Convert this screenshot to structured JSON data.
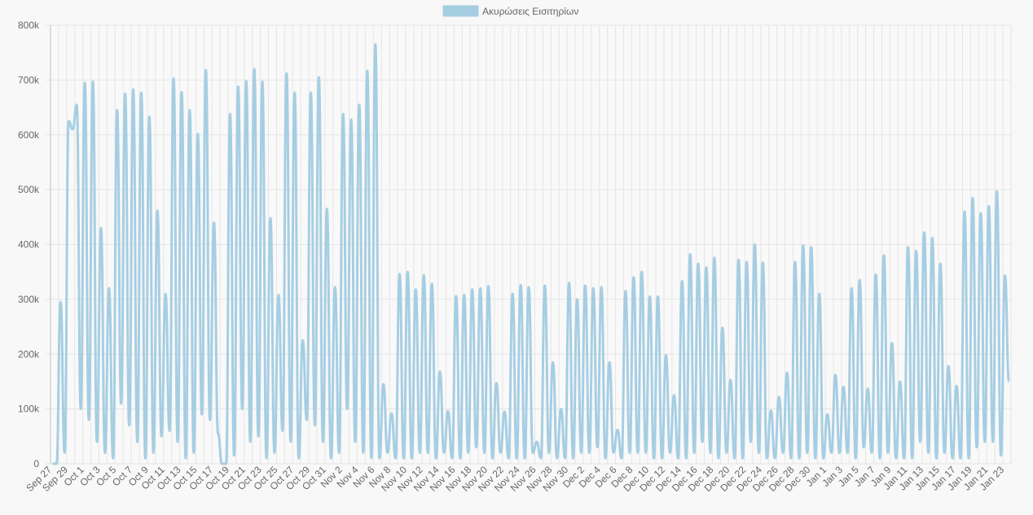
{
  "chart_data": {
    "type": "line",
    "legend": {
      "position": "top",
      "label": "Ακυρώσεις Εισιτηρίων"
    },
    "colors": {
      "line": "#a6cee3",
      "grid": "#e5e5e5",
      "axis": "#bfbfbf",
      "text": "#666666",
      "background": "#f8f8f8"
    },
    "grid": true,
    "ylim": [
      0,
      800000
    ],
    "y_ticks": [
      "0",
      "100k",
      "200k",
      "300k",
      "400k",
      "500k",
      "600k",
      "700k",
      "800k"
    ],
    "x_ticks": [
      "Sep 27",
      "Sep 29",
      "Oct 1",
      "Oct 3",
      "Oct 5",
      "Oct 7",
      "Oct 9",
      "Oct 11",
      "Oct 13",
      "Oct 15",
      "Oct 17",
      "Oct 19",
      "Oct 21",
      "Oct 23",
      "Oct 25",
      "Oct 27",
      "Oct 29",
      "Oct 31",
      "Nov 2",
      "Nov 4",
      "Nov 6",
      "Nov 8",
      "Nov 10",
      "Nov 12",
      "Nov 14",
      "Nov 16",
      "Nov 18",
      "Nov 20",
      "Nov 22",
      "Nov 24",
      "Nov 26",
      "Nov 28",
      "Nov 30",
      "Dec 2",
      "Dec 4",
      "Dec 6",
      "Dec 8",
      "Dec 10",
      "Dec 12",
      "Dec 14",
      "Dec 16",
      "Dec 18",
      "Dec 20",
      "Dec 22",
      "Dec 24",
      "Dec 26",
      "Dec 28",
      "Dec 30",
      "Jan 1",
      "Jan 3",
      "Jan 5",
      "Jan 7",
      "Jan 9",
      "Jan 11",
      "Jan 13",
      "Jan 15",
      "Jan 17",
      "Jan 19",
      "Jan 21",
      "Jan 23"
    ],
    "series": [
      {
        "name": "Ακυρώσεις Εισιτηρίων",
        "days": [
          {
            "date": "Sep 27",
            "peaks": [
              0,
              0
            ]
          },
          {
            "date": "Sep 28",
            "peaks": [
              295000,
              20000
            ]
          },
          {
            "date": "Sep 29",
            "peaks": [
              625000,
              610000
            ]
          },
          {
            "date": "Sep 30",
            "peaks": [
              655000,
              100000
            ]
          },
          {
            "date": "Oct 1",
            "peaks": [
              695000,
              80000
            ]
          },
          {
            "date": "Oct 2",
            "peaks": [
              697000,
              40000
            ]
          },
          {
            "date": "Oct 3",
            "peaks": [
              430000,
              20000
            ]
          },
          {
            "date": "Oct 4",
            "peaks": [
              320000,
              10000
            ]
          },
          {
            "date": "Oct 5",
            "peaks": [
              645000,
              110000
            ]
          },
          {
            "date": "Oct 6",
            "peaks": [
              675000,
              70000
            ]
          },
          {
            "date": "Oct 7",
            "peaks": [
              683000,
              40000
            ]
          },
          {
            "date": "Oct 8",
            "peaks": [
              677000,
              10000
            ]
          },
          {
            "date": "Oct 9",
            "peaks": [
              633000,
              20000
            ]
          },
          {
            "date": "Oct 10",
            "peaks": [
              462000,
              50000
            ]
          },
          {
            "date": "Oct 11",
            "peaks": [
              310000,
              60000
            ]
          },
          {
            "date": "Oct 12",
            "peaks": [
              703000,
              40000
            ]
          },
          {
            "date": "Oct 13",
            "peaks": [
              678000,
              10000
            ]
          },
          {
            "date": "Oct 14",
            "peaks": [
              645000,
              20000
            ]
          },
          {
            "date": "Oct 15",
            "peaks": [
              602000,
              90000
            ]
          },
          {
            "date": "Oct 16",
            "peaks": [
              718000,
              80000
            ]
          },
          {
            "date": "Oct 17",
            "peaks": [
              440000,
              55000
            ]
          },
          {
            "date": "Oct 18",
            "peaks": [
              0,
              0
            ]
          },
          {
            "date": "Oct 19",
            "peaks": [
              638000,
              15000
            ]
          },
          {
            "date": "Oct 20",
            "peaks": [
              688000,
              100000
            ]
          },
          {
            "date": "Oct 21",
            "peaks": [
              698000,
              40000
            ]
          },
          {
            "date": "Oct 22",
            "peaks": [
              720000,
              50000
            ]
          },
          {
            "date": "Oct 23",
            "peaks": [
              697000,
              10000
            ]
          },
          {
            "date": "Oct 24",
            "peaks": [
              448000,
              20000
            ]
          },
          {
            "date": "Oct 25",
            "peaks": [
              308000,
              60000
            ]
          },
          {
            "date": "Oct 26",
            "peaks": [
              712000,
              40000
            ]
          },
          {
            "date": "Oct 27",
            "peaks": [
              677000,
              10000
            ]
          },
          {
            "date": "Oct 28",
            "peaks": [
              225000,
              80000
            ]
          },
          {
            "date": "Oct 29",
            "peaks": [
              677000,
              70000
            ]
          },
          {
            "date": "Oct 30",
            "peaks": [
              705000,
              40000
            ]
          },
          {
            "date": "Oct 31",
            "peaks": [
              465000,
              10000
            ]
          },
          {
            "date": "Nov 1",
            "peaks": [
              322000,
              20000
            ]
          },
          {
            "date": "Nov 2",
            "peaks": [
              638000,
              100000
            ]
          },
          {
            "date": "Nov 3",
            "peaks": [
              628000,
              40000
            ]
          },
          {
            "date": "Nov 4",
            "peaks": [
              655000,
              20000
            ]
          },
          {
            "date": "Nov 5",
            "peaks": [
              717000,
              10000
            ]
          },
          {
            "date": "Nov 6",
            "peaks": [
              765000,
              10000
            ]
          },
          {
            "date": "Nov 7",
            "peaks": [
              145000,
              20000
            ]
          },
          {
            "date": "Nov 8",
            "peaks": [
              92000,
              10000
            ]
          },
          {
            "date": "Nov 9",
            "peaks": [
              346000,
              10000
            ]
          },
          {
            "date": "Nov 10",
            "peaks": [
              350000,
              10000
            ]
          },
          {
            "date": "Nov 11",
            "peaks": [
              318000,
              20000
            ]
          },
          {
            "date": "Nov 12",
            "peaks": [
              344000,
              20000
            ]
          },
          {
            "date": "Nov 13",
            "peaks": [
              328000,
              10000
            ]
          },
          {
            "date": "Nov 14",
            "peaks": [
              168000,
              20000
            ]
          },
          {
            "date": "Nov 15",
            "peaks": [
              96000,
              10000
            ]
          },
          {
            "date": "Nov 16",
            "peaks": [
              306000,
              10000
            ]
          },
          {
            "date": "Nov 17",
            "peaks": [
              308000,
              20000
            ]
          },
          {
            "date": "Nov 18",
            "peaks": [
              318000,
              30000
            ]
          },
          {
            "date": "Nov 19",
            "peaks": [
              320000,
              20000
            ]
          },
          {
            "date": "Nov 20",
            "peaks": [
              324000,
              10000
            ]
          },
          {
            "date": "Nov 21",
            "peaks": [
              147000,
              20000
            ]
          },
          {
            "date": "Nov 22",
            "peaks": [
              95000,
              10000
            ]
          },
          {
            "date": "Nov 23",
            "peaks": [
              310000,
              10000
            ]
          },
          {
            "date": "Nov 24",
            "peaks": [
              326000,
              10000
            ]
          },
          {
            "date": "Nov 25",
            "peaks": [
              322000,
              20000
            ]
          },
          {
            "date": "Nov 26",
            "peaks": [
              40000,
              10000
            ]
          },
          {
            "date": "Nov 27",
            "peaks": [
              325000,
              20000
            ]
          },
          {
            "date": "Nov 28",
            "peaks": [
              185000,
              10000
            ]
          },
          {
            "date": "Nov 29",
            "peaks": [
              100000,
              10000
            ]
          },
          {
            "date": "Nov 30",
            "peaks": [
              330000,
              10000
            ]
          },
          {
            "date": "Dec 1",
            "peaks": [
              300000,
              20000
            ]
          },
          {
            "date": "Dec 2",
            "peaks": [
              325000,
              20000
            ]
          },
          {
            "date": "Dec 3",
            "peaks": [
              320000,
              30000
            ]
          },
          {
            "date": "Dec 4",
            "peaks": [
              322000,
              10000
            ]
          },
          {
            "date": "Dec 5",
            "peaks": [
              185000,
              20000
            ]
          },
          {
            "date": "Dec 6",
            "peaks": [
              62000,
              10000
            ]
          },
          {
            "date": "Dec 7",
            "peaks": [
              315000,
              20000
            ]
          },
          {
            "date": "Dec 8",
            "peaks": [
              340000,
              20000
            ]
          },
          {
            "date": "Dec 9",
            "peaks": [
              350000,
              20000
            ]
          },
          {
            "date": "Dec 10",
            "peaks": [
              305000,
              10000
            ]
          },
          {
            "date": "Dec 11",
            "peaks": [
              305000,
              10000
            ]
          },
          {
            "date": "Dec 12",
            "peaks": [
              198000,
              20000
            ]
          },
          {
            "date": "Dec 13",
            "peaks": [
              125000,
              10000
            ]
          },
          {
            "date": "Dec 14",
            "peaks": [
              333000,
              10000
            ]
          },
          {
            "date": "Dec 15",
            "peaks": [
              382000,
              20000
            ]
          },
          {
            "date": "Dec 16",
            "peaks": [
              365000,
              40000
            ]
          },
          {
            "date": "Dec 17",
            "peaks": [
              358000,
              20000
            ]
          },
          {
            "date": "Dec 18",
            "peaks": [
              376000,
              10000
            ]
          },
          {
            "date": "Dec 19",
            "peaks": [
              248000,
              20000
            ]
          },
          {
            "date": "Dec 20",
            "peaks": [
              153000,
              10000
            ]
          },
          {
            "date": "Dec 21",
            "peaks": [
              372000,
              10000
            ]
          },
          {
            "date": "Dec 22",
            "peaks": [
              368000,
              40000
            ]
          },
          {
            "date": "Dec 23",
            "peaks": [
              400000,
              20000
            ]
          },
          {
            "date": "Dec 24",
            "peaks": [
              367000,
              10000
            ]
          },
          {
            "date": "Dec 25",
            "peaks": [
              97000,
              10000
            ]
          },
          {
            "date": "Dec 26",
            "peaks": [
              122000,
              20000
            ]
          },
          {
            "date": "Dec 27",
            "peaks": [
              166000,
              10000
            ]
          },
          {
            "date": "Dec 28",
            "peaks": [
              368000,
              10000
            ]
          },
          {
            "date": "Dec 29",
            "peaks": [
              398000,
              20000
            ]
          },
          {
            "date": "Dec 30",
            "peaks": [
              395000,
              10000
            ]
          },
          {
            "date": "Dec 31",
            "peaks": [
              310000,
              10000
            ]
          },
          {
            "date": "Jan 1",
            "peaks": [
              90000,
              20000
            ]
          },
          {
            "date": "Jan 2",
            "peaks": [
              162000,
              20000
            ]
          },
          {
            "date": "Jan 3",
            "peaks": [
              140000,
              20000
            ]
          },
          {
            "date": "Jan 4",
            "peaks": [
              320000,
              10000
            ]
          },
          {
            "date": "Jan 5",
            "peaks": [
              335000,
              30000
            ]
          },
          {
            "date": "Jan 6",
            "peaks": [
              137000,
              20000
            ]
          },
          {
            "date": "Jan 7",
            "peaks": [
              345000,
              10000
            ]
          },
          {
            "date": "Jan 8",
            "peaks": [
              380000,
              20000
            ]
          },
          {
            "date": "Jan 9",
            "peaks": [
              220000,
              10000
            ]
          },
          {
            "date": "Jan 10",
            "peaks": [
              150000,
              10000
            ]
          },
          {
            "date": "Jan 11",
            "peaks": [
              395000,
              10000
            ]
          },
          {
            "date": "Jan 12",
            "peaks": [
              388000,
              40000
            ]
          },
          {
            "date": "Jan 13",
            "peaks": [
              422000,
              20000
            ]
          },
          {
            "date": "Jan 14",
            "peaks": [
              412000,
              10000
            ]
          },
          {
            "date": "Jan 15",
            "peaks": [
              365000,
              20000
            ]
          },
          {
            "date": "Jan 16",
            "peaks": [
              178000,
              10000
            ]
          },
          {
            "date": "Jan 17",
            "peaks": [
              142000,
              10000
            ]
          },
          {
            "date": "Jan 18",
            "peaks": [
              460000,
              10000
            ]
          },
          {
            "date": "Jan 19",
            "peaks": [
              485000,
              30000
            ]
          },
          {
            "date": "Jan 20",
            "peaks": [
              457000,
              40000
            ]
          },
          {
            "date": "Jan 21",
            "peaks": [
              470000,
              40000
            ]
          },
          {
            "date": "Jan 22",
            "peaks": [
              497000,
              15000
            ]
          },
          {
            "date": "Jan 23",
            "peaks": [
              343000,
              150000
            ]
          }
        ]
      }
    ]
  }
}
